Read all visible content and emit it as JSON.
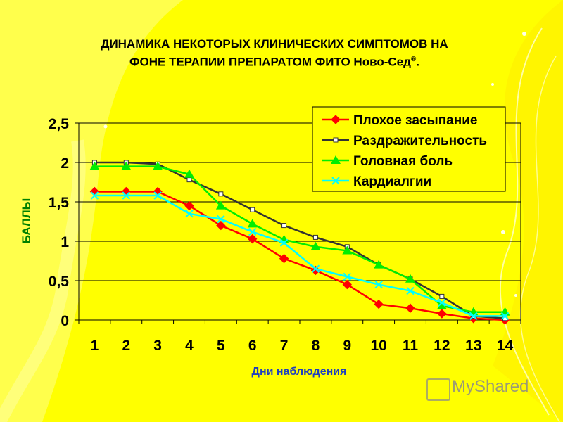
{
  "title": {
    "line1": "ДИНАМИКА НЕКОТОРЫХ КЛИНИЧЕСКИХ СИМПТОМОВ НА",
    "line2_text": "ФОНЕ ТЕРАПИИ ПРЕПАРАТОМ ФИТО Ново-Сед",
    "line2_sup": "®",
    "line2_end": "."
  },
  "watermark": "MyShared",
  "chart_data": {
    "type": "line",
    "title": "ДИНАМИКА НЕКОТОРЫХ КЛИНИЧЕСКИХ СИМПТОМОВ НА ФОНЕ ТЕРАПИИ ПРЕПАРАТОМ ФИТО Ново-Сед®.",
    "xlabel": "Дни наблюдения",
    "ylabel": "БАЛЛЫ",
    "categories": [
      "1",
      "2",
      "3",
      "4",
      "5",
      "6",
      "7",
      "8",
      "9",
      "10",
      "11",
      "12",
      "13",
      "14"
    ],
    "ylim": [
      0,
      2.5
    ],
    "yticks": [
      "0",
      "0,5",
      "1",
      "1,5",
      "2",
      "2,5"
    ],
    "grid": true,
    "legend_position": "top-right",
    "series": [
      {
        "name": "Плохое засыпание",
        "color": "#ff0000",
        "marker": "diamond",
        "values": [
          1.63,
          1.63,
          1.63,
          1.45,
          1.2,
          1.03,
          0.78,
          0.63,
          0.45,
          0.2,
          0.15,
          0.08,
          0.02,
          0.0
        ]
      },
      {
        "name": "Раздражительность",
        "color": "#333333",
        "marker": "square",
        "values": [
          2.0,
          2.0,
          1.98,
          1.78,
          1.6,
          1.4,
          1.2,
          1.05,
          0.93,
          0.7,
          0.52,
          0.3,
          0.05,
          0.02
        ]
      },
      {
        "name": "Головная боль",
        "color": "#00ee00",
        "marker": "triangle",
        "values": [
          1.95,
          1.95,
          1.95,
          1.85,
          1.45,
          1.22,
          1.02,
          0.93,
          0.88,
          0.7,
          0.52,
          0.18,
          0.1,
          0.1
        ]
      },
      {
        "name": "Кардиалгии",
        "color": "#00ffff",
        "marker": "x",
        "values": [
          1.58,
          1.58,
          1.58,
          1.35,
          1.28,
          1.12,
          0.98,
          0.65,
          0.55,
          0.45,
          0.37,
          0.22,
          0.05,
          0.05
        ]
      }
    ]
  }
}
